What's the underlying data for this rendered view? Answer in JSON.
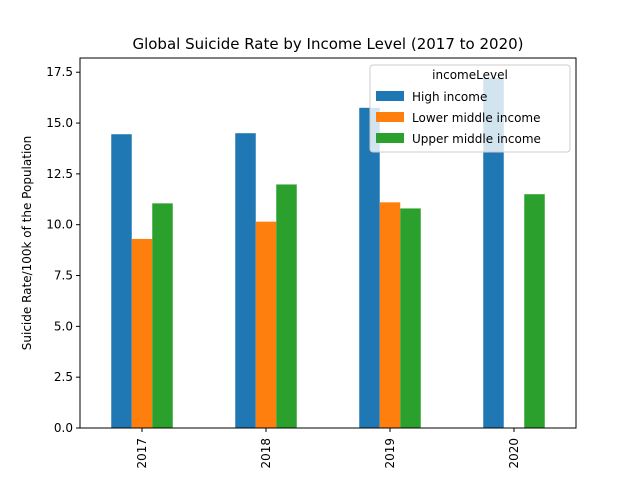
{
  "chart_data": {
    "type": "bar",
    "title": "Global Suicide Rate by Income Level (2017 to 2020)",
    "xlabel": "",
    "ylabel": "Suicide Rate/100k of the Population",
    "categories": [
      "2017",
      "2018",
      "2019",
      "2020"
    ],
    "ylim": [
      0,
      18.2
    ],
    "yticks": [
      "0.0",
      "2.5",
      "5.0",
      "7.5",
      "10.0",
      "12.5",
      "15.0",
      "17.5"
    ],
    "legend": {
      "title": "incomeLevel",
      "placement": "top-right"
    },
    "grid": false,
    "series": [
      {
        "name": "High income",
        "color": "#1f77b4",
        "values": [
          14.45,
          14.5,
          15.75,
          17.2
        ]
      },
      {
        "name": "Lower middle income",
        "color": "#ff7f0e",
        "values": [
          9.3,
          10.15,
          11.1,
          null
        ]
      },
      {
        "name": "Upper middle income",
        "color": "#2ca02c",
        "values": [
          11.05,
          11.98,
          10.8,
          11.5
        ]
      }
    ]
  }
}
